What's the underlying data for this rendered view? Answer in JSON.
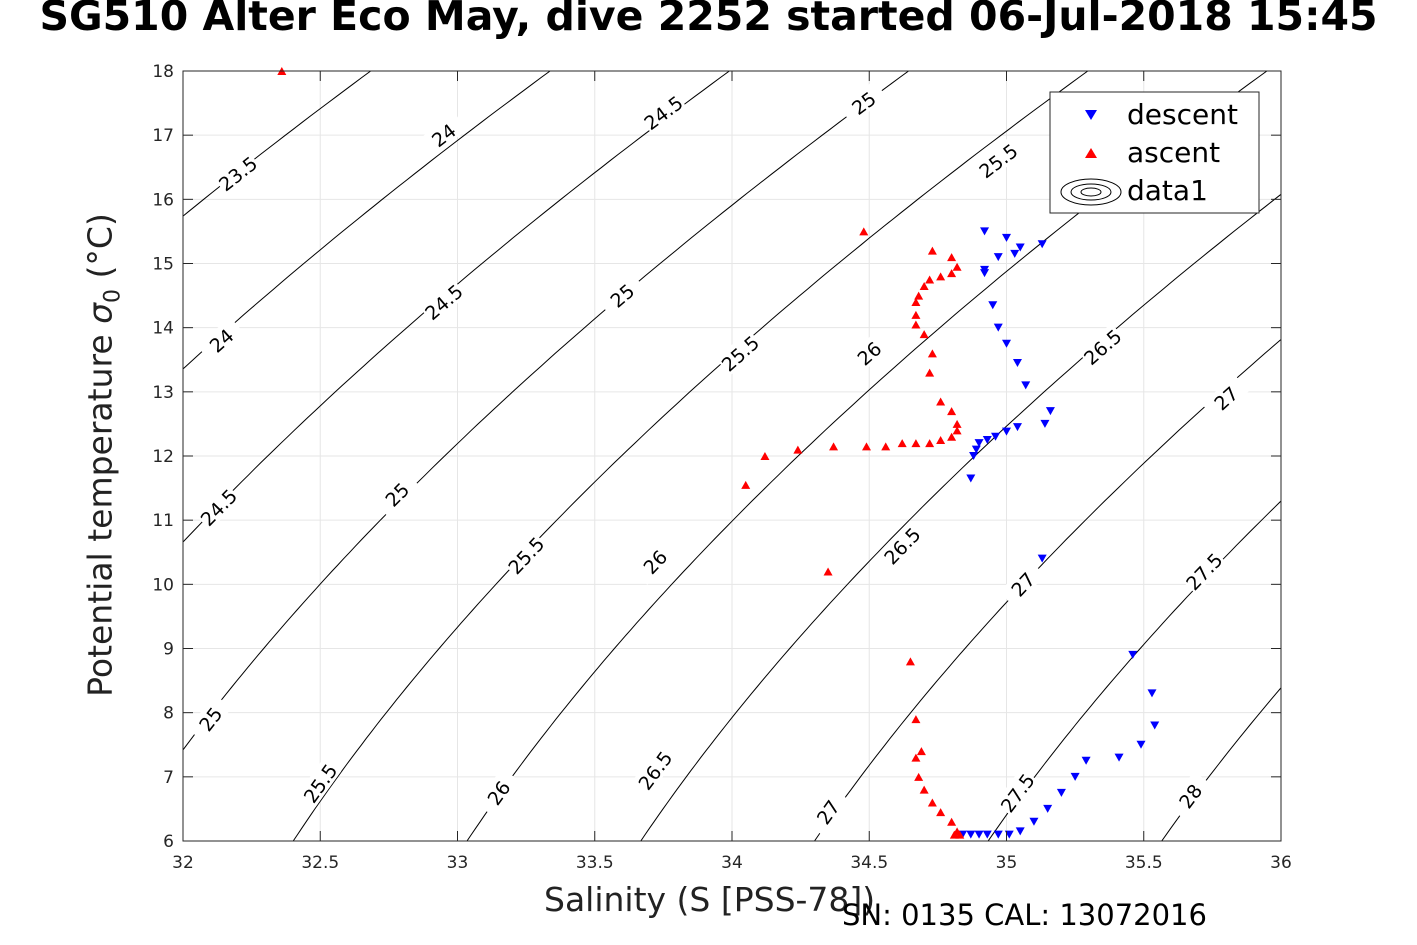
{
  "title": "SG510 Alter Eco May, dive 2252 started 06-Jul-2018 15:45",
  "footer": {
    "serial": "SN: 0135  CAL: 13072016"
  },
  "chart_data": {
    "type": "scatter",
    "title": "SG510 Alter Eco May, dive 2252 started 06-Jul-2018 15:45",
    "xlabel": "Salinity (S [PSS-78])",
    "ylabel": "Potential temperature σ₀ (°C)",
    "xlim": [
      32,
      36
    ],
    "ylim": [
      6,
      18
    ],
    "xticks": [
      32,
      32.5,
      33,
      33.5,
      34,
      34.5,
      35,
      35.5,
      36
    ],
    "xtick_labels": [
      "32",
      "32.5",
      "33",
      "33.5",
      "34",
      "34.5",
      "35",
      "35.5",
      "36"
    ],
    "yticks": [
      6,
      7,
      8,
      9,
      10,
      11,
      12,
      13,
      14,
      15,
      16,
      17,
      18
    ],
    "ytick_labels": [
      "6",
      "7",
      "8",
      "9",
      "10",
      "11",
      "12",
      "13",
      "14",
      "15",
      "16",
      "17",
      "18"
    ],
    "grid": true,
    "legend": {
      "position": "top-right",
      "entries": [
        "descent",
        "ascent",
        "data1"
      ]
    },
    "colors": {
      "descent": "#0000ff",
      "ascent": "#ff0000",
      "contour": "#000000",
      "grid": "#e6e6e6"
    },
    "series": [
      {
        "name": "descent",
        "marker": "triangle-down",
        "points": [
          [
            34.92,
            15.5
          ],
          [
            35.0,
            15.4
          ],
          [
            34.97,
            15.1
          ],
          [
            35.03,
            15.15
          ],
          [
            35.05,
            15.25
          ],
          [
            35.13,
            15.3
          ],
          [
            34.92,
            14.9
          ],
          [
            34.92,
            14.85
          ],
          [
            34.95,
            14.35
          ],
          [
            34.97,
            14.0
          ],
          [
            35.0,
            13.75
          ],
          [
            35.04,
            13.45
          ],
          [
            35.07,
            13.1
          ],
          [
            35.16,
            12.7
          ],
          [
            35.14,
            12.5
          ],
          [
            35.04,
            12.45
          ],
          [
            35.0,
            12.38
          ],
          [
            34.96,
            12.3
          ],
          [
            34.93,
            12.25
          ],
          [
            34.9,
            12.2
          ],
          [
            34.89,
            12.1
          ],
          [
            34.88,
            12.0
          ],
          [
            34.87,
            11.65
          ],
          [
            35.13,
            10.4
          ],
          [
            35.46,
            8.9
          ],
          [
            35.53,
            8.3
          ],
          [
            35.54,
            7.8
          ],
          [
            35.49,
            7.5
          ],
          [
            35.41,
            7.3
          ],
          [
            35.29,
            7.25
          ],
          [
            35.25,
            7.0
          ],
          [
            35.2,
            6.75
          ],
          [
            35.15,
            6.5
          ],
          [
            35.1,
            6.3
          ],
          [
            35.05,
            6.15
          ],
          [
            35.01,
            6.1
          ],
          [
            34.97,
            6.1
          ],
          [
            34.93,
            6.1
          ],
          [
            34.9,
            6.1
          ],
          [
            34.87,
            6.1
          ],
          [
            34.84,
            6.1
          ]
        ]
      },
      {
        "name": "ascent",
        "marker": "triangle-up",
        "points": [
          [
            32.36,
            18.0
          ],
          [
            34.48,
            15.5
          ],
          [
            34.73,
            15.2
          ],
          [
            34.8,
            15.1
          ],
          [
            34.82,
            14.95
          ],
          [
            34.8,
            14.85
          ],
          [
            34.76,
            14.8
          ],
          [
            34.72,
            14.75
          ],
          [
            34.7,
            14.65
          ],
          [
            34.68,
            14.5
          ],
          [
            34.67,
            14.4
          ],
          [
            34.67,
            14.2
          ],
          [
            34.67,
            14.05
          ],
          [
            34.7,
            13.9
          ],
          [
            34.73,
            13.6
          ],
          [
            34.72,
            13.3
          ],
          [
            34.76,
            12.85
          ],
          [
            34.8,
            12.7
          ],
          [
            34.82,
            12.5
          ],
          [
            34.82,
            12.4
          ],
          [
            34.8,
            12.3
          ],
          [
            34.76,
            12.25
          ],
          [
            34.72,
            12.2
          ],
          [
            34.67,
            12.2
          ],
          [
            34.62,
            12.2
          ],
          [
            34.56,
            12.15
          ],
          [
            34.49,
            12.15
          ],
          [
            34.37,
            12.15
          ],
          [
            34.24,
            12.1
          ],
          [
            34.12,
            12.0
          ],
          [
            34.05,
            11.55
          ],
          [
            34.35,
            10.2
          ],
          [
            34.65,
            8.8
          ],
          [
            34.67,
            7.9
          ],
          [
            34.69,
            7.4
          ],
          [
            34.67,
            7.3
          ],
          [
            34.68,
            7.0
          ],
          [
            34.7,
            6.8
          ],
          [
            34.73,
            6.6
          ],
          [
            34.76,
            6.45
          ],
          [
            34.8,
            6.3
          ],
          [
            34.82,
            6.15
          ],
          [
            34.83,
            6.1
          ],
          [
            34.81,
            6.1
          ]
        ]
      }
    ],
    "contours": {
      "name": "data1",
      "levels": [
        23.5,
        24,
        24.5,
        25,
        25.5,
        26,
        26.5,
        27,
        27.5,
        28
      ],
      "labels": [
        {
          "text": "23.5",
          "x": 32.2,
          "y": 16.4
        },
        {
          "text": "24",
          "x": 32.95,
          "y": 17.0
        },
        {
          "text": "24.5",
          "x": 33.75,
          "y": 17.35
        },
        {
          "text": "25",
          "x": 34.48,
          "y": 17.5
        },
        {
          "text": "25.5",
          "x": 34.97,
          "y": 16.6
        },
        {
          "text": "26.5",
          "x": 35.35,
          "y": 13.7
        },
        {
          "text": "27",
          "x": 35.8,
          "y": 12.9
        },
        {
          "text": "24",
          "x": 32.14,
          "y": 13.8
        },
        {
          "text": "24.5",
          "x": 32.95,
          "y": 14.4
        },
        {
          "text": "25",
          "x": 33.6,
          "y": 14.5
        },
        {
          "text": "25.5",
          "x": 34.03,
          "y": 13.6
        },
        {
          "text": "26",
          "x": 34.5,
          "y": 13.6
        },
        {
          "text": "24.5",
          "x": 32.13,
          "y": 11.2
        },
        {
          "text": "25",
          "x": 32.78,
          "y": 11.4
        },
        {
          "text": "25.5",
          "x": 33.25,
          "y": 10.45
        },
        {
          "text": "26",
          "x": 33.72,
          "y": 10.35
        },
        {
          "text": "26.5",
          "x": 34.62,
          "y": 10.6
        },
        {
          "text": "27",
          "x": 35.06,
          "y": 10.0
        },
        {
          "text": "27.5",
          "x": 35.72,
          "y": 10.2
        },
        {
          "text": "25",
          "x": 32.1,
          "y": 7.9
        },
        {
          "text": "25.5",
          "x": 32.5,
          "y": 6.9
        },
        {
          "text": "26",
          "x": 33.15,
          "y": 6.75
        },
        {
          "text": "26.5",
          "x": 33.72,
          "y": 7.1
        },
        {
          "text": "27",
          "x": 34.35,
          "y": 6.45
        },
        {
          "text": "27.5",
          "x": 35.04,
          "y": 6.75
        },
        {
          "text": "28",
          "x": 35.67,
          "y": 6.7
        }
      ]
    }
  }
}
